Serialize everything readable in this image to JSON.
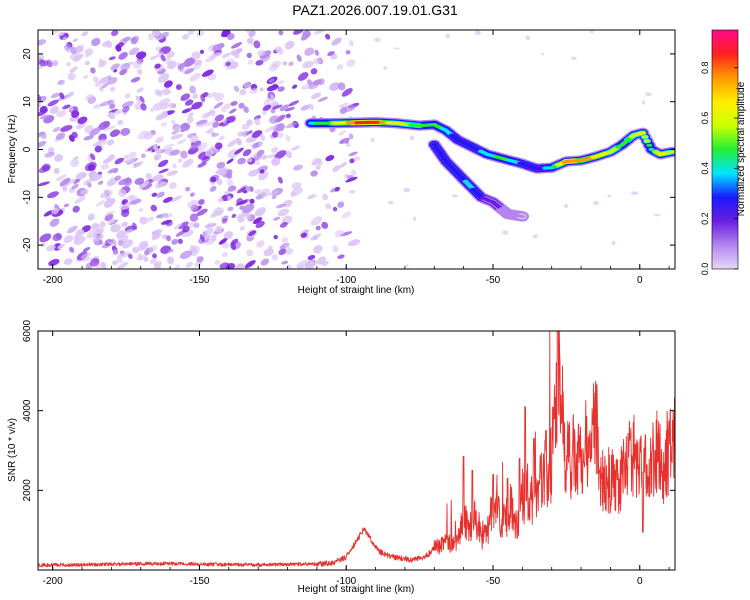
{
  "title": "PAZ1.2026.007.19.01.G31",
  "colors": {
    "snr_line": "#e8312d",
    "axis": "#000000",
    "speckle_light": "#dcc4f5",
    "speckle_mid": "#b58aee",
    "speckle_dark": "#7b22e0"
  },
  "chart_data": [
    {
      "type": "heatmap",
      "id": "spectrogram",
      "xlabel": "Height of straight line (km)",
      "ylabel": "Frequency (Hz)",
      "xlim": [
        -205,
        12
      ],
      "ylim": [
        -25,
        25
      ],
      "xticks": [
        -200,
        -150,
        -100,
        -50,
        0
      ],
      "yticks": [
        -20,
        -10,
        0,
        10,
        20
      ],
      "xtick_labels": [
        "-200",
        "-150",
        "-100",
        "-50",
        "0"
      ],
      "ytick_labels": [
        "-20",
        "-10",
        "0",
        "10",
        "20"
      ],
      "noise_region": {
        "x_range": [
          -205,
          -105
        ],
        "y_range": [
          -25,
          25
        ]
      },
      "main_track": [
        {
          "x": -112,
          "y": 5.5,
          "amp": 0.45
        },
        {
          "x": -105,
          "y": 5.5,
          "amp": 0.55
        },
        {
          "x": -97,
          "y": 5.6,
          "amp": 0.85
        },
        {
          "x": -90,
          "y": 5.7,
          "amp": 0.95
        },
        {
          "x": -83,
          "y": 5.5,
          "amp": 0.6
        },
        {
          "x": -75,
          "y": 5.0,
          "amp": 0.55
        },
        {
          "x": -70,
          "y": 5.2,
          "amp": 0.5
        },
        {
          "x": -66,
          "y": 4.0,
          "amp": 0.45
        },
        {
          "x": -62,
          "y": 2.0,
          "amp": 0.3
        },
        {
          "x": -57,
          "y": 0.5,
          "amp": 0.3
        },
        {
          "x": -52,
          "y": -1.0,
          "amp": 0.45
        },
        {
          "x": -46,
          "y": -2.0,
          "amp": 0.5
        },
        {
          "x": -40,
          "y": -3.0,
          "amp": 0.35
        },
        {
          "x": -35,
          "y": -4.0,
          "amp": 0.3
        },
        {
          "x": -30,
          "y": -3.8,
          "amp": 0.45
        },
        {
          "x": -25,
          "y": -2.5,
          "amp": 0.85
        },
        {
          "x": -20,
          "y": -2.3,
          "amp": 0.8
        },
        {
          "x": -15,
          "y": -1.5,
          "amp": 0.75
        },
        {
          "x": -10,
          "y": -0.5,
          "amp": 0.65
        },
        {
          "x": -6,
          "y": 1.0,
          "amp": 0.5
        },
        {
          "x": -2,
          "y": 3.0,
          "amp": 0.6
        },
        {
          "x": 1,
          "y": 3.5,
          "amp": 0.7
        },
        {
          "x": 4,
          "y": 0.0,
          "amp": 0.45
        },
        {
          "x": 7,
          "y": -1.0,
          "amp": 0.7
        },
        {
          "x": 11,
          "y": -0.5,
          "amp": 0.6
        }
      ],
      "branch_track": [
        {
          "x": -70,
          "y": 1.0,
          "amp": 0.35
        },
        {
          "x": -66,
          "y": -2.5,
          "amp": 0.3
        },
        {
          "x": -62,
          "y": -5.0,
          "amp": 0.35
        },
        {
          "x": -58,
          "y": -7.5,
          "amp": 0.4
        },
        {
          "x": -54,
          "y": -10.0,
          "amp": 0.3
        },
        {
          "x": -50,
          "y": -11.0,
          "amp": 0.2
        },
        {
          "x": -45,
          "y": -13.5,
          "amp": 0.18
        },
        {
          "x": -40,
          "y": -14.0,
          "amp": 0.12
        }
      ],
      "colorbar": {
        "label": "Normalized spectral amplitude",
        "range": [
          0,
          0.95
        ],
        "ticks": [
          0.0,
          0.2,
          0.4,
          0.6,
          0.8
        ],
        "tick_labels": [
          "0.0",
          "0.2",
          "0.4",
          "0.6",
          "0.8"
        ],
        "colors": [
          "#e8d8f7",
          "#b385ef",
          "#6a1ee0",
          "#1a1aff",
          "#00e5ff",
          "#22ee33",
          "#ccff00",
          "#ffee00",
          "#ff9900",
          "#ff2020",
          "#ff0a8c"
        ]
      }
    },
    {
      "type": "line",
      "id": "snr",
      "xlabel": "Height of straight line (km)",
      "ylabel": "SNR (10 * v/v)",
      "xlim": [
        -205,
        12
      ],
      "ylim": [
        0,
        6000
      ],
      "xticks": [
        -200,
        -150,
        -100,
        -50,
        0
      ],
      "yticks": [
        2000,
        4000,
        6000
      ],
      "xtick_labels": [
        "-200",
        "-150",
        "-100",
        "-50",
        "0"
      ],
      "ytick_labels": [
        "2000",
        "4000",
        "6000"
      ],
      "x": [
        -205,
        -190,
        -175,
        -160,
        -145,
        -130,
        -120,
        -110,
        -105,
        -100,
        -98,
        -96,
        -94,
        -92,
        -90,
        -88,
        -86,
        -84,
        -82,
        -80,
        -78,
        -76,
        -74,
        -72,
        -70,
        -68,
        -66,
        -64,
        -62,
        -60,
        -58,
        -56,
        -54,
        -52,
        -50,
        -48,
        -46,
        -44,
        -42,
        -40,
        -38,
        -36,
        -34,
        -32,
        -30,
        -28.5,
        -27.5,
        -26,
        -24,
        -22,
        -20,
        -18,
        -16,
        -14.5,
        -14,
        -12,
        -10,
        -8,
        -6,
        -4,
        -2,
        0,
        2,
        4,
        6,
        8,
        10,
        12
      ],
      "y": [
        120,
        130,
        150,
        160,
        140,
        130,
        140,
        150,
        170,
        320,
        550,
        800,
        1020,
        820,
        560,
        430,
        370,
        330,
        300,
        280,
        260,
        280,
        300,
        400,
        550,
        620,
        700,
        650,
        800,
        1400,
        1000,
        1300,
        800,
        900,
        1700,
        1400,
        1200,
        1600,
        1200,
        1700,
        2000,
        1600,
        2200,
        2500,
        2700,
        4200,
        5600,
        3300,
        2800,
        2900,
        2850,
        3200,
        3400,
        3600,
        2500,
        2100,
        2300,
        2100,
        2300,
        2700,
        2900,
        2500,
        2700,
        2800,
        3000,
        2600,
        3100,
        3200
      ],
      "spikes": [
        {
          "x": -60,
          "y": 2850
        },
        {
          "x": -57,
          "y": 2500
        },
        {
          "x": -50,
          "y": 2400
        },
        {
          "x": -45,
          "y": 2300
        },
        {
          "x": -41,
          "y": 2800
        },
        {
          "x": -39,
          "y": 4100
        },
        {
          "x": -36,
          "y": 3300
        },
        {
          "x": -32,
          "y": 3500
        },
        {
          "x": -28,
          "y": 6000
        },
        {
          "x": -16,
          "y": 3650
        },
        {
          "x": 1,
          "y": 950
        }
      ]
    }
  ]
}
